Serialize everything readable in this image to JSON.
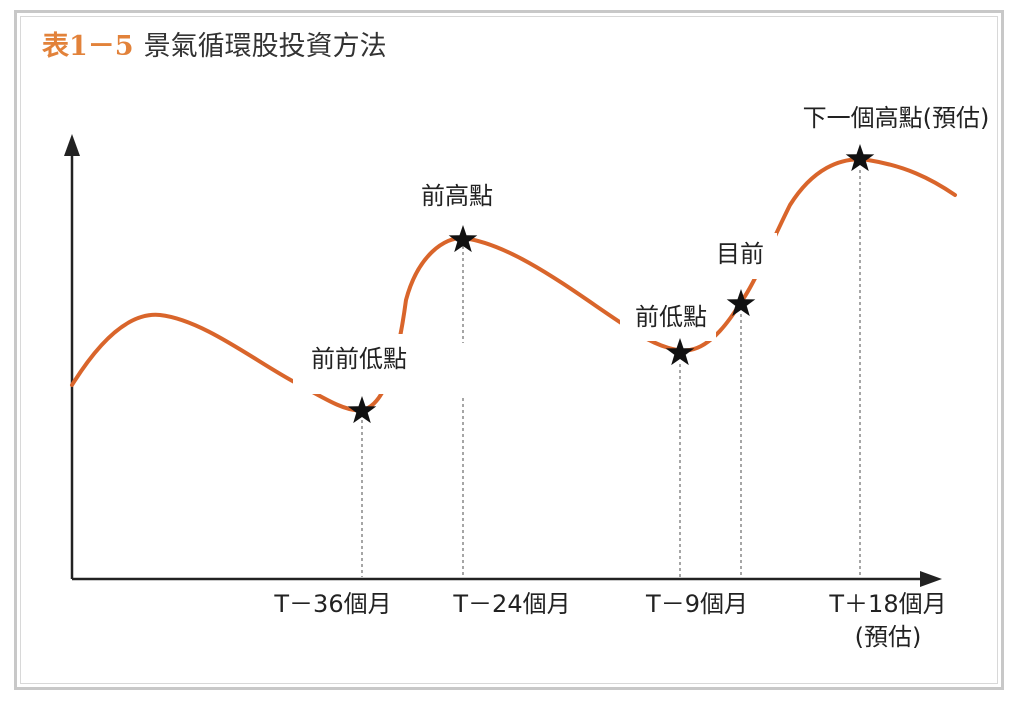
{
  "title": {
    "number": "表1－5",
    "text": "景氣循環股投資方法"
  },
  "colors": {
    "curve": "#d9652b",
    "axis": "#222222",
    "star": "#111111",
    "title_number": "#e2823a"
  },
  "points": [
    {
      "id": "prev-prev-low",
      "label": "前前低點"
    },
    {
      "id": "prev-high",
      "label": "前高點"
    },
    {
      "id": "prev-low",
      "label": "前低點"
    },
    {
      "id": "current",
      "label": "目前"
    },
    {
      "id": "next-high",
      "label": "下一個高點(預估)"
    }
  ],
  "x_ticks": [
    {
      "id": "t-36",
      "label": "T－36個月"
    },
    {
      "id": "t-24",
      "label": "T－24個月"
    },
    {
      "id": "t-9",
      "label": "T－9個月"
    },
    {
      "id": "t+18",
      "label": "T＋18個月",
      "sub": "(預估)"
    }
  ]
}
